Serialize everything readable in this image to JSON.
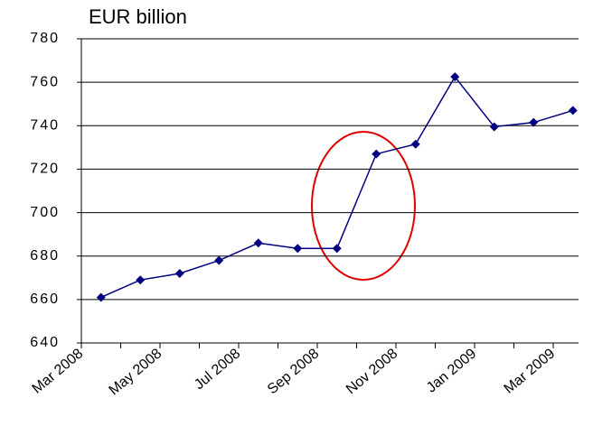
{
  "chart_data": {
    "type": "line",
    "title": "EUR billion",
    "categories": [
      "Mar 2008",
      null,
      "May 2008",
      null,
      "Jul 2008",
      null,
      "Sep 2008",
      null,
      "Nov 2008",
      null,
      "Jan 2009",
      null,
      "Mar 2009"
    ],
    "series": [
      {
        "name": "EUR billion",
        "color": "#000080",
        "values": [
          661,
          669,
          672,
          678,
          686,
          683.5,
          683.5,
          727,
          731.5,
          762.5,
          739.5,
          741.5,
          747
        ]
      }
    ],
    "ylim": [
      640,
      780
    ],
    "yticks": [
      640,
      660,
      680,
      700,
      720,
      740,
      760,
      780
    ],
    "grid": true
  }
}
